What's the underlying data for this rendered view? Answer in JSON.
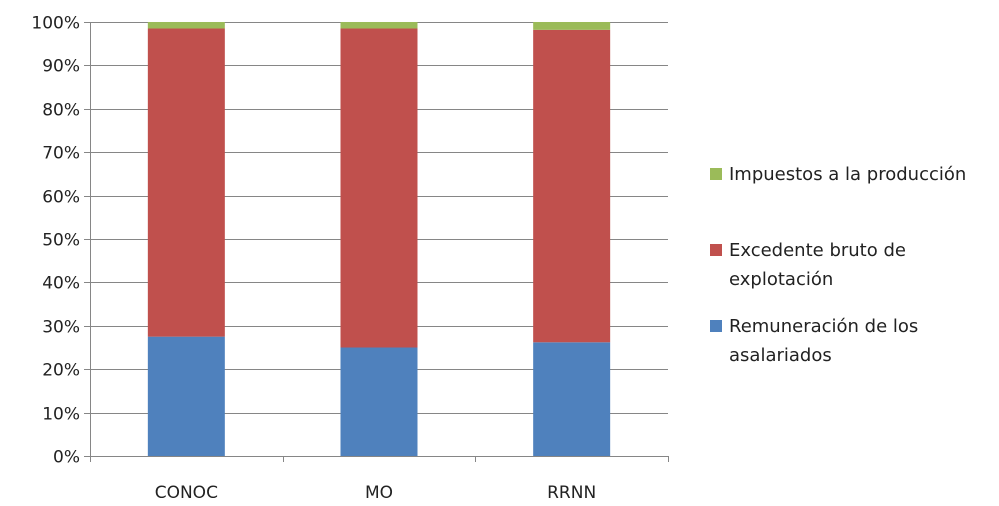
{
  "chart_data": {
    "type": "bar",
    "stacked": true,
    "percent": true,
    "title": "",
    "xlabel": "",
    "ylabel": "",
    "categories": [
      "CONOC",
      "MO",
      "RRNN"
    ],
    "series": [
      {
        "name": "Remuneración de los asalariados",
        "values": [
          27.5,
          25.0,
          26.2
        ],
        "color": "#4f81bd"
      },
      {
        "name": "Excedente bruto de explotación",
        "values": [
          71.0,
          73.5,
          72.0
        ],
        "color": "#c0504d"
      },
      {
        "name": "Impuestos a la producción",
        "values": [
          1.5,
          1.5,
          1.8
        ],
        "color": "#9bbb59"
      }
    ],
    "ylim": [
      0,
      100
    ],
    "yticks": [
      "0%",
      "10%",
      "20%",
      "30%",
      "40%",
      "50%",
      "60%",
      "70%",
      "80%",
      "90%",
      "100%"
    ],
    "grid": true,
    "legend_position": "right",
    "legend": [
      {
        "series": 2,
        "lines": [
          "Impuestos a la producción"
        ]
      },
      {
        "series": 1,
        "lines": [
          "Excedente bruto de",
          "explotación"
        ]
      },
      {
        "series": 0,
        "lines": [
          " Remuneración de los",
          "asalariados"
        ]
      }
    ]
  }
}
